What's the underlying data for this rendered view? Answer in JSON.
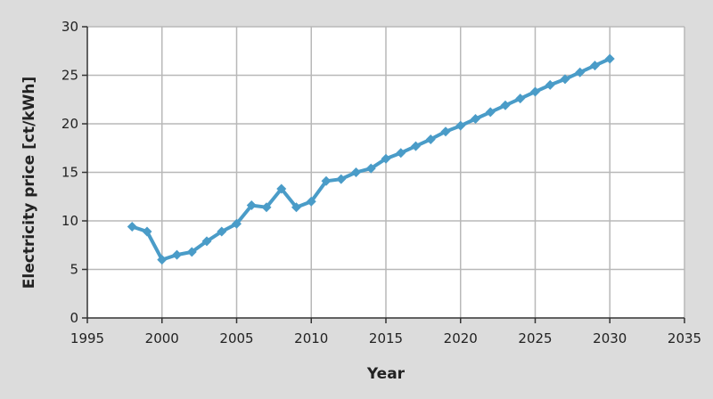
{
  "chart_data": {
    "type": "line",
    "title": "",
    "xlabel": "Year",
    "ylabel": "Electricity price [ct/kWh]",
    "xlim": [
      1995,
      2035
    ],
    "ylim": [
      0,
      30
    ],
    "x_ticks": [
      1995,
      2000,
      2005,
      2010,
      2015,
      2020,
      2025,
      2030,
      2035
    ],
    "y_ticks": [
      0,
      5,
      10,
      15,
      20,
      25,
      30
    ],
    "grid": true,
    "legend": "none",
    "series": [
      {
        "color": "#4a9cc8",
        "marker": "diamond",
        "x": [
          1998,
          1999,
          2000,
          2001,
          2002,
          2003,
          2004,
          2005,
          2006,
          2007,
          2008,
          2009,
          2010,
          2011,
          2012,
          2013,
          2014,
          2015,
          2016,
          2017,
          2018,
          2019,
          2020,
          2021,
          2022,
          2023,
          2024,
          2025,
          2026,
          2027,
          2028,
          2029,
          2030
        ],
        "y": [
          9.4,
          8.9,
          6.0,
          6.5,
          6.8,
          7.9,
          8.9,
          9.7,
          11.6,
          11.4,
          13.3,
          11.4,
          12.0,
          14.1,
          14.3,
          15.0,
          15.4,
          16.4,
          17.0,
          17.7,
          18.4,
          19.2,
          19.8,
          20.5,
          21.2,
          21.9,
          22.6,
          23.3,
          24.0,
          24.6,
          25.3,
          26.0,
          26.7
        ]
      }
    ]
  }
}
